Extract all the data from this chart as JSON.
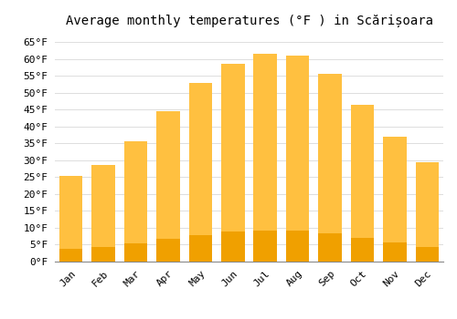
{
  "title": "Average monthly temperatures (°F ) in Scărișoara",
  "months": [
    "Jan",
    "Feb",
    "Mar",
    "Apr",
    "May",
    "Jun",
    "Jul",
    "Aug",
    "Sep",
    "Oct",
    "Nov",
    "Dec"
  ],
  "values": [
    25.5,
    28.5,
    35.5,
    44.5,
    53.0,
    58.5,
    61.5,
    61.0,
    55.5,
    46.5,
    37.0,
    29.5
  ],
  "bar_color_top": "#FFC040",
  "bar_color_bottom": "#F0A000",
  "ylim": [
    0,
    68
  ],
  "yticks": [
    0,
    5,
    10,
    15,
    20,
    25,
    30,
    35,
    40,
    45,
    50,
    55,
    60,
    65
  ],
  "background_color": "#FFFFFF",
  "grid_color": "#DDDDDD",
  "title_fontsize": 10,
  "tick_fontsize": 8,
  "font_family": "monospace",
  "fig_width": 5.0,
  "fig_height": 3.5,
  "dpi": 100
}
